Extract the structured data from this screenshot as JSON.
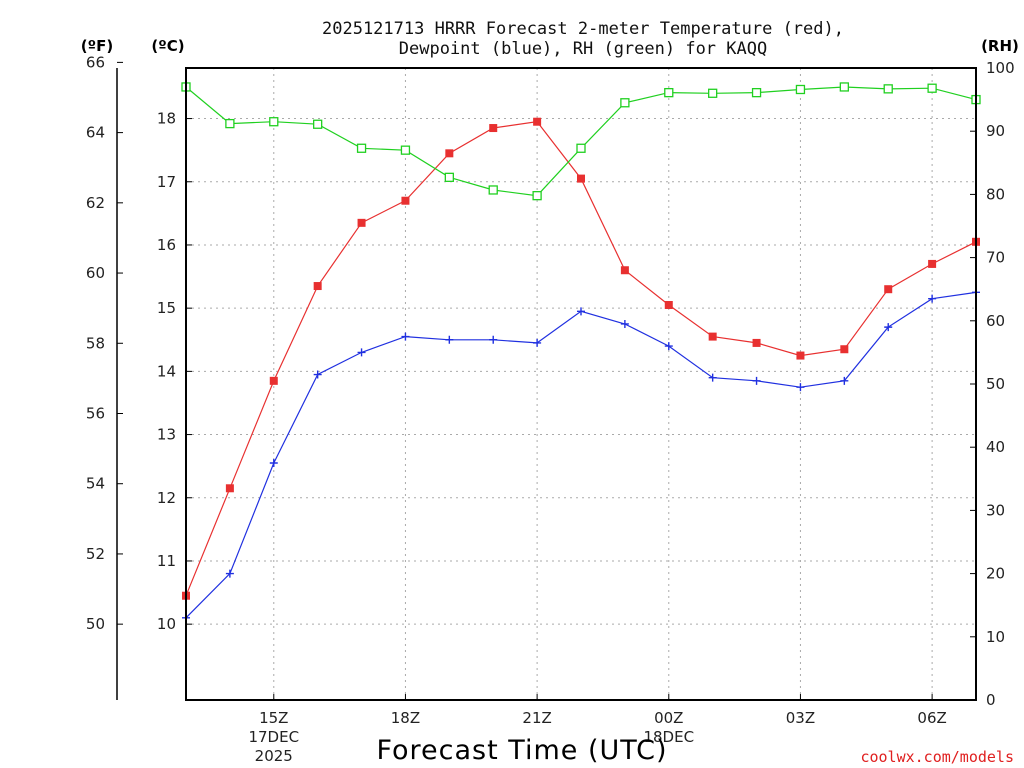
{
  "chart_data": {
    "type": "line",
    "title_line1": "2025121713 HRRR Forecast 2-meter Temperature (red),",
    "title_line2": "Dewpoint (blue), RH (green) for KAQQ",
    "left_unit_f": "(ºF)",
    "left_unit_c": "(ºC)",
    "right_unit": "(RH)",
    "xlabel": "Forecast Time (UTC)",
    "credit": "coolwx.com/models",
    "x_hours": [
      13,
      14,
      15,
      16,
      17,
      18,
      19,
      20,
      21,
      22,
      23,
      24,
      25,
      26,
      27,
      28,
      29,
      30,
      31
    ],
    "x_range": [
      13,
      31
    ],
    "x_ticks": [
      {
        "hour": 15,
        "label": "15Z",
        "sub1": "17DEC",
        "sub2": "2025"
      },
      {
        "hour": 18,
        "label": "18Z",
        "sub1": "",
        "sub2": ""
      },
      {
        "hour": 21,
        "label": "21Z",
        "sub1": "",
        "sub2": ""
      },
      {
        "hour": 24,
        "label": "00Z",
        "sub1": "18DEC",
        "sub2": ""
      },
      {
        "hour": 27,
        "label": "03Z",
        "sub1": "",
        "sub2": ""
      },
      {
        "hour": 30,
        "label": "06Z",
        "sub1": "",
        "sub2": ""
      }
    ],
    "celsius_axis": {
      "range": [
        8.8,
        18.8
      ],
      "ticks": [
        10,
        11,
        12,
        13,
        14,
        15,
        16,
        17,
        18
      ]
    },
    "fahrenheit_axis": {
      "ticks": [
        50,
        52,
        54,
        56,
        58,
        60,
        62,
        64,
        66
      ]
    },
    "rh_axis": {
      "range": [
        0,
        100
      ],
      "ticks": [
        0,
        10,
        20,
        30,
        40,
        50,
        60,
        70,
        80,
        90,
        100
      ]
    },
    "series": [
      {
        "name": "Temperature",
        "unit": "C",
        "color": "#e83030",
        "marker": "filled-square",
        "values": [
          10.45,
          12.15,
          13.85,
          15.35,
          16.35,
          16.7,
          17.45,
          17.85,
          17.95,
          17.05,
          15.6,
          15.05,
          14.55,
          14.45,
          14.25,
          14.35,
          15.3,
          15.7,
          16.05
        ]
      },
      {
        "name": "Dewpoint",
        "unit": "C",
        "color": "#2030e0",
        "marker": "plus",
        "values": [
          10.1,
          10.8,
          12.55,
          13.95,
          14.3,
          14.55,
          14.5,
          14.5,
          14.45,
          14.95,
          14.75,
          14.4,
          13.9,
          13.85,
          13.75,
          13.85,
          14.7,
          15.15,
          15.25
        ]
      },
      {
        "name": "RH",
        "unit": "%",
        "color": "#20d020",
        "marker": "open-square",
        "values": [
          97,
          91.2,
          91.5,
          91.1,
          87.3,
          87,
          82.7,
          80.7,
          79.8,
          87.3,
          94.5,
          96.1,
          96,
          96.1,
          96.6,
          97,
          96.7,
          96.8,
          95
        ]
      }
    ]
  }
}
